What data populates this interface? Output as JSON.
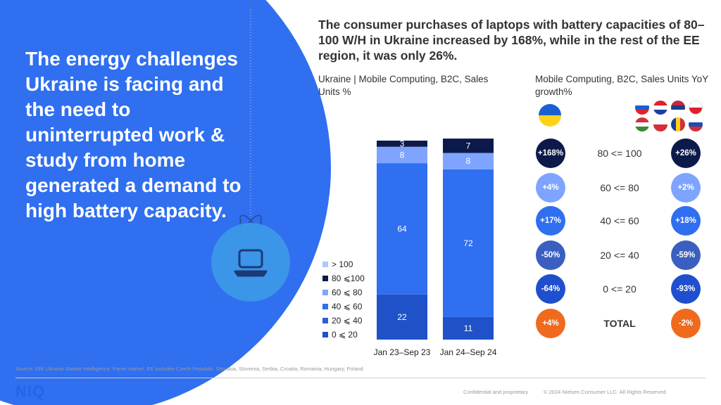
{
  "headline": "The energy challenges Ukraine is facing and the need to uninterrupted work & study from home generated a demand to high battery capacity.",
  "title": "The consumer purchases of laptops with battery capacities of 80–100 W/H in Ukraine increased by 168%, while in the rest of the EE region, it was only 26%.",
  "left_subtitle": "Ukraine | Mobile Computing, B2C, Sales Units %",
  "right_subtitle": "Mobile Computing, B2C, Sales Units YoY growth%",
  "icons": {
    "laptop": "laptop-icon",
    "ornament_string": "bow-icon"
  },
  "colors": {
    "background_blue": "#2f6ff0",
    "ornament": "#3b95e8",
    "seg_gt100": "#aec6ff",
    "seg_80_100": "#0b1a4a",
    "seg_60_80": "#7ea4ff",
    "seg_40_60": "#2f6ff0",
    "seg_20_40": "#2a5fd8",
    "seg_0_20": "#1f52c8",
    "total": "#f06a1e"
  },
  "chart_data": {
    "type": "bar",
    "stacked": true,
    "title": "",
    "categories": [
      "Jan 23–Sep 23",
      "Jan 24–Sep 24"
    ],
    "series": [
      {
        "name": "0 ⩽ 20",
        "values": [
          22,
          11
        ]
      },
      {
        "name": "20 ⩽ 40",
        "values": [
          null,
          null
        ]
      },
      {
        "name": "40 ⩽ 60",
        "values": [
          64,
          72
        ]
      },
      {
        "name": "60 ⩽ 80",
        "values": [
          8,
          8
        ]
      },
      {
        "name": "80 ⩽100",
        "values": [
          3,
          7
        ]
      },
      {
        "name": "> 100",
        "values": [
          null,
          null
        ]
      }
    ],
    "legend": [
      "> 100",
      "80 ⩽100",
      "60 ⩽ 80",
      "40 ⩽ 60",
      "20 ⩽ 40",
      "0 ⩽ 20"
    ],
    "ylim": [
      0,
      100
    ],
    "legend_position": "left"
  },
  "growth_table": {
    "rows": [
      {
        "range": "80 <= 100",
        "ukraine": "+168%",
        "ee": "+26%",
        "color": "#0b1a4a"
      },
      {
        "range": "60 <= 80",
        "ukraine": "+4%",
        "ee": "+2%",
        "color": "#7ea4ff"
      },
      {
        "range": "40 <= 60",
        "ukraine": "+17%",
        "ee": "+18%",
        "color": "#2f6ff0"
      },
      {
        "range": "20 <= 40",
        "ukraine": "-50%",
        "ee": "-59%",
        "color": "#3b5fc0"
      },
      {
        "range": "0 <= 20",
        "ukraine": "-64%",
        "ee": "-93%",
        "color": "#1f4fcf"
      },
      {
        "range": "TOTAL",
        "ukraine": "+4%",
        "ee": "-2%",
        "color": "#f06a1e"
      }
    ]
  },
  "footer": {
    "source": "Source: GfK Ukraine Market Intelligence: Panel market, EE includes Czech Republic, Slovakia, Slovenia, Serbia, Croatia, Romania, Hungary, Poland",
    "logo": "NIQ",
    "confidential": "Confidential and proprietary",
    "copyright": "© 2024 Nielsen Consumer LLC. All Rights Reserved."
  }
}
